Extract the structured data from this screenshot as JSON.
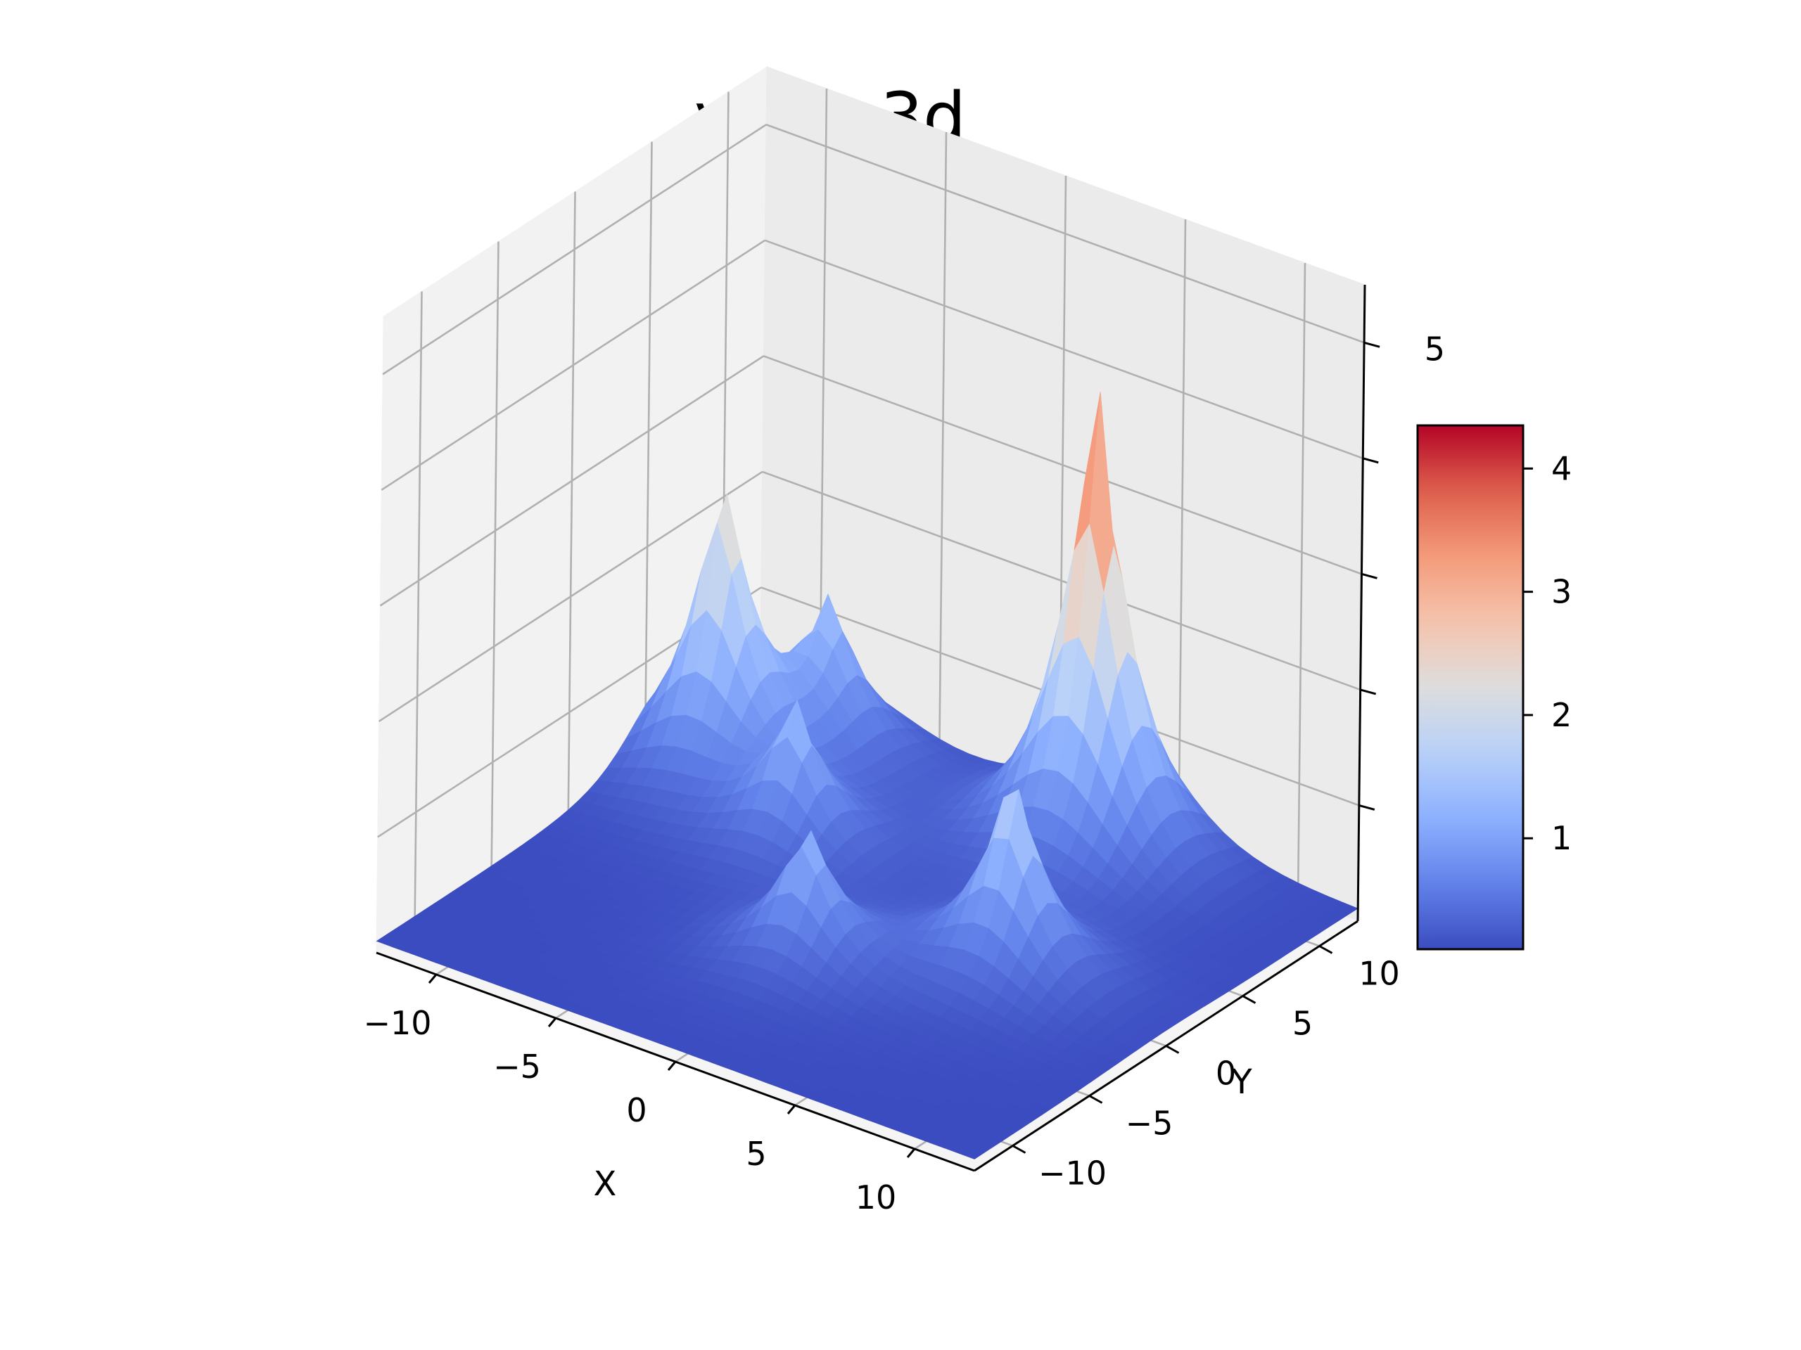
{
  "chart_data": {
    "type": "surface3d",
    "title": "var2_3d",
    "xlabel": "X",
    "ylabel": "Y",
    "zlabel": "",
    "xlim": [
      -12.5,
      12.5
    ],
    "ylim": [
      -12.5,
      12.5
    ],
    "zlim": [
      0,
      5.5
    ],
    "x_ticks": [
      -10,
      -5,
      0,
      5,
      10
    ],
    "y_ticks": [
      -10,
      -5,
      0,
      5,
      10
    ],
    "z_ticks": [
      1,
      2,
      3,
      4,
      5
    ],
    "x_tick_labels": [
      "−10",
      "−5",
      "0",
      "5",
      "10"
    ],
    "y_tick_labels": [
      "−10",
      "−5",
      "0",
      "5",
      "10"
    ],
    "z_tick_labels": [
      "1",
      "2",
      "3",
      "4",
      "5"
    ],
    "colormap": "coolwarm",
    "grid": true,
    "colorbar": {
      "range": [
        0.1,
        4.35
      ],
      "ticks": [
        1,
        2,
        3,
        4
      ],
      "tick_labels": [
        "1",
        "2",
        "3",
        "4"
      ]
    },
    "surface": {
      "baseline": 0.1,
      "peaks": [
        {
          "x": -10,
          "y": 6,
          "height": 2.7
        },
        {
          "x": -5,
          "y": 3,
          "height": 1.3
        },
        {
          "x": 0,
          "y": -4,
          "height": 1.3
        },
        {
          "x": -8,
          "y": 10,
          "height": 1.3
        },
        {
          "x": 6,
          "y": 0,
          "height": 1.9
        },
        {
          "x": 3,
          "y": 10,
          "height": 4.3
        }
      ]
    }
  }
}
